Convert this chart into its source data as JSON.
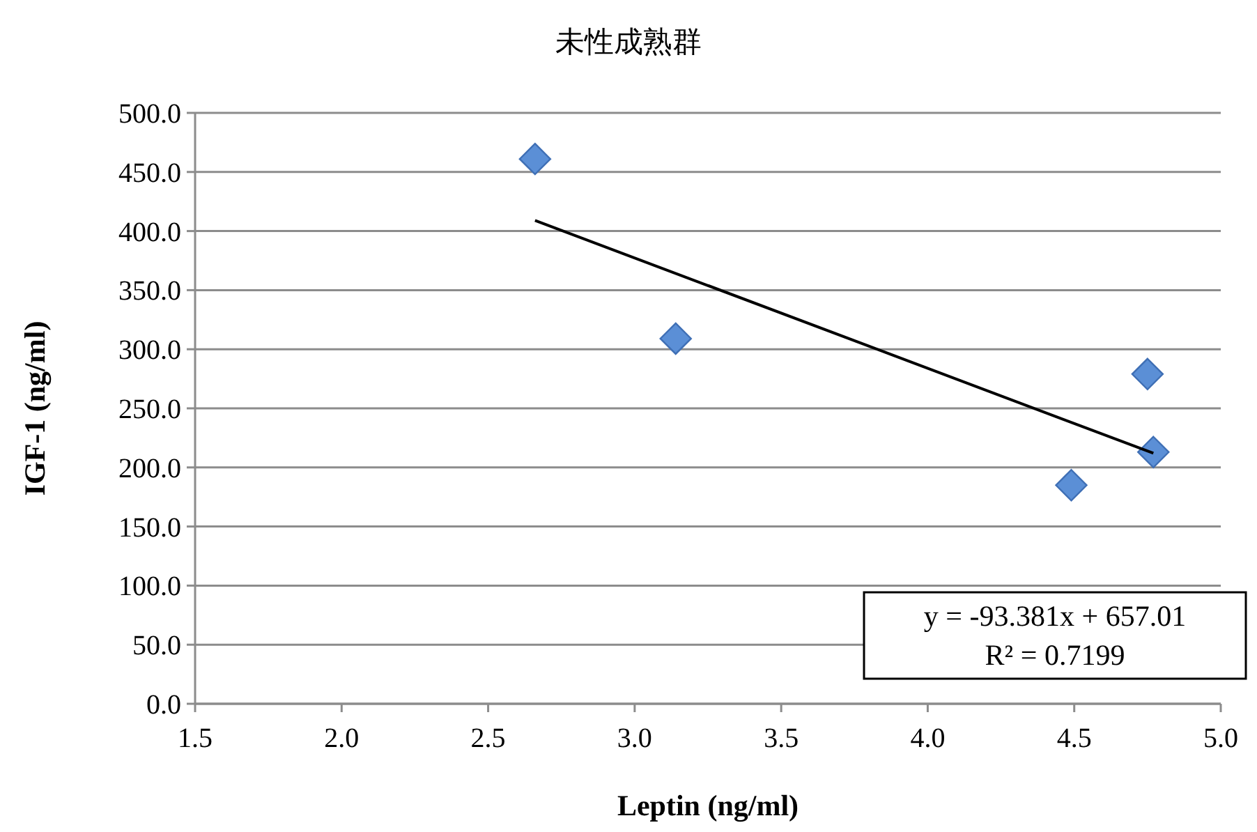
{
  "chart_data": {
    "type": "scatter",
    "title": "未性成熟群",
    "xlabel": "Leptin (ng/ml)",
    "ylabel": "IGF-1 (ng/ml)",
    "xlim": [
      1.5,
      5.0
    ],
    "ylim": [
      0,
      500
    ],
    "xticks": [
      1.5,
      {
        "value": 2,
        "label": "2.0"
      },
      2.5,
      {
        "value": 3,
        "label": "3.0"
      },
      3.5,
      {
        "value": 4,
        "label": "4.0"
      },
      4.5,
      {
        "value": 5,
        "label": "5.0"
      }
    ],
    "yticks": [
      {
        "value": 0,
        "label": "0.0"
      },
      {
        "value": 50,
        "label": "50.0"
      },
      {
        "value": 100,
        "label": "100.0"
      },
      {
        "value": 150,
        "label": "150.0"
      },
      {
        "value": 200,
        "label": "200.0"
      },
      {
        "value": 250,
        "label": "250.0"
      },
      {
        "value": 300,
        "label": "300.0"
      },
      {
        "value": 350,
        "label": "350.0"
      },
      {
        "value": 400,
        "label": "400.0"
      },
      {
        "value": 450,
        "label": "450.0"
      },
      {
        "value": 500,
        "label": "500.0"
      }
    ],
    "grid": "y",
    "marker": "diamond",
    "series": [
      {
        "type": "scatter",
        "color": "#5b8fd6",
        "x": [
          2.66,
          3.14,
          4.75,
          4.77,
          4.49
        ],
        "values": [
          461,
          309,
          279,
          213,
          185
        ]
      },
      {
        "type": "line",
        "color": "#000000",
        "marker": "none",
        "x": [
          2.66,
          4.77
        ],
        "values": [
          409,
          212
        ]
      }
    ],
    "annotations": [
      "y = -93.381x + 657.01",
      "R² = 0.7199"
    ]
  }
}
